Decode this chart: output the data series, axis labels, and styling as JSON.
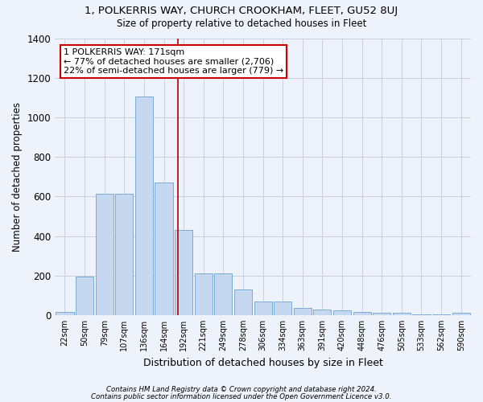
{
  "title": "1, POLKERRIS WAY, CHURCH CROOKHAM, FLEET, GU52 8UJ",
  "subtitle": "Size of property relative to detached houses in Fleet",
  "xlabel": "Distribution of detached houses by size in Fleet",
  "ylabel": "Number of detached properties",
  "bar_color": "#c5d8f0",
  "bar_edge_color": "#7badd6",
  "categories": [
    "22sqm",
    "50sqm",
    "79sqm",
    "107sqm",
    "136sqm",
    "164sqm",
    "192sqm",
    "221sqm",
    "249sqm",
    "278sqm",
    "306sqm",
    "334sqm",
    "363sqm",
    "391sqm",
    "420sqm",
    "448sqm",
    "476sqm",
    "505sqm",
    "533sqm",
    "562sqm",
    "590sqm"
  ],
  "values": [
    15,
    195,
    615,
    615,
    1105,
    670,
    430,
    210,
    210,
    130,
    70,
    70,
    35,
    30,
    25,
    15,
    10,
    10,
    5,
    5,
    10
  ],
  "vline_x": 5.7,
  "vline_color": "#aa0000",
  "annotation_text": "1 POLKERRIS WAY: 171sqm\n← 77% of detached houses are smaller (2,706)\n22% of semi-detached houses are larger (779) →",
  "annotation_box_color": "#ffffff",
  "annotation_box_edge_color": "#cc0000",
  "ylim": [
    0,
    1400
  ],
  "yticks": [
    0,
    200,
    400,
    600,
    800,
    1000,
    1200,
    1400
  ],
  "footnote1": "Contains HM Land Registry data © Crown copyright and database right 2024.",
  "footnote2": "Contains public sector information licensed under the Open Government Licence v3.0.",
  "bg_color": "#eef2fa",
  "plot_bg_color": "#eef2fa",
  "grid_color": "#c8d0e0"
}
